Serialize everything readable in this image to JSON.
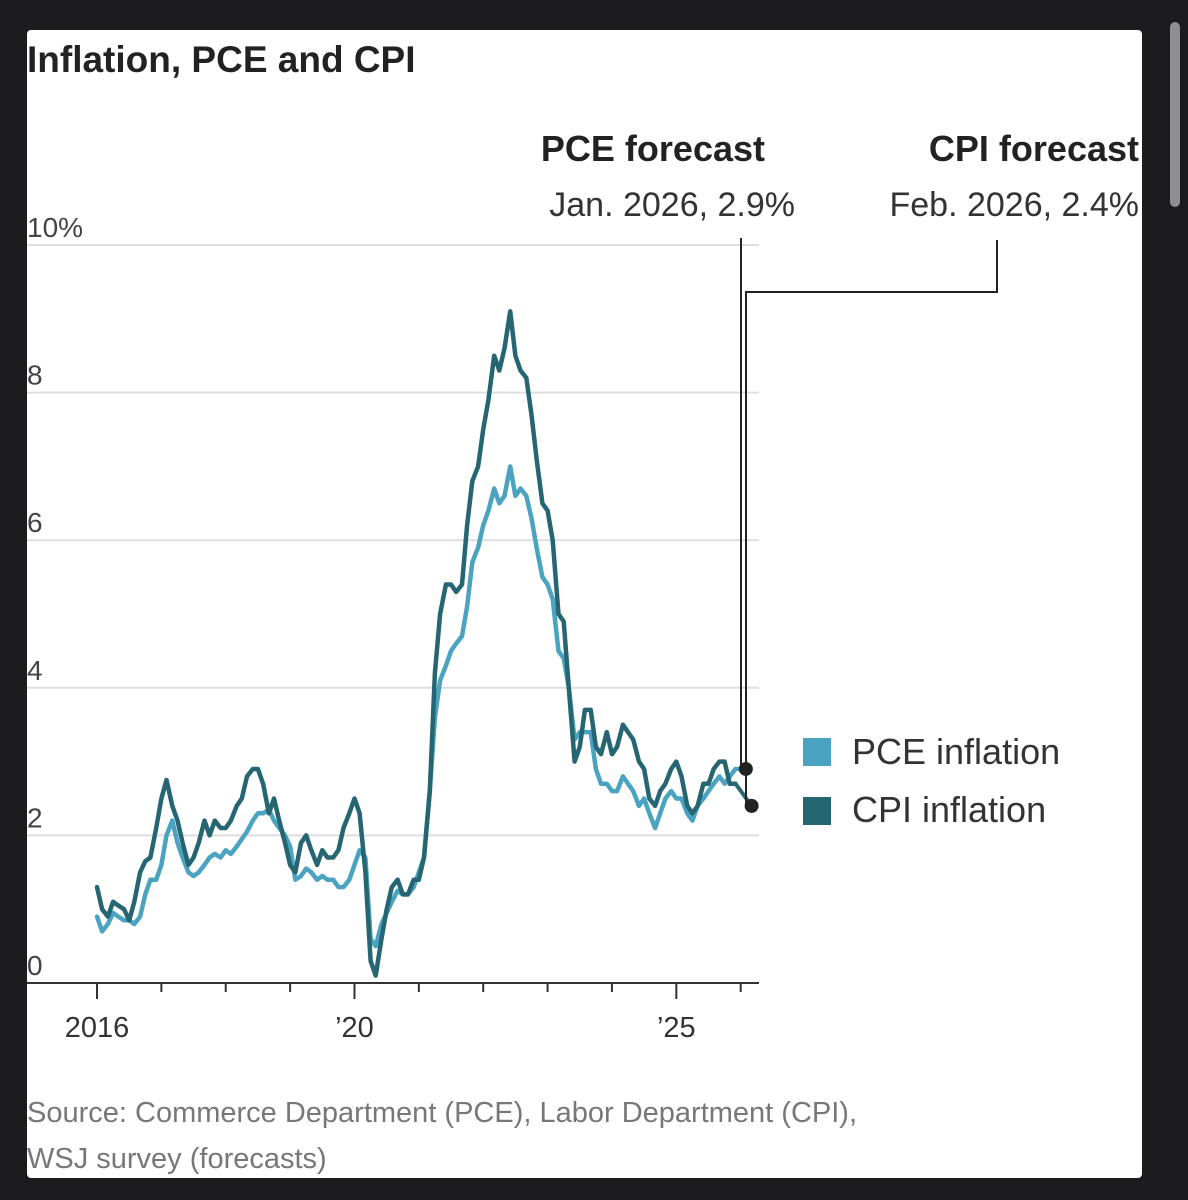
{
  "chart_data": {
    "type": "line",
    "title": "Inflation, PCE and CPI",
    "ylim": [
      0,
      10
    ],
    "yticks": [
      {
        "value": 0,
        "label": "0"
      },
      {
        "value": 2,
        "label": "2"
      },
      {
        "value": 4,
        "label": "4"
      },
      {
        "value": 6,
        "label": "6"
      },
      {
        "value": 8,
        "label": "8"
      },
      {
        "value": 10,
        "label": "10%"
      }
    ],
    "xlim": [
      2016.0,
      2026.3
    ],
    "xticks": [
      {
        "value": 2016,
        "label": "2016"
      },
      {
        "value": 2020,
        "label": "’20"
      },
      {
        "value": 2025,
        "label": "’25"
      }
    ],
    "minor_xticks": [
      2017,
      2018,
      2019,
      2021,
      2022,
      2023,
      2024,
      2026
    ],
    "grid": true,
    "series": [
      {
        "name": "PCE inflation",
        "color": "#4aa3c0",
        "points": [
          [
            2016.0,
            0.9
          ],
          [
            2016.08,
            0.7
          ],
          [
            2016.17,
            0.8
          ],
          [
            2016.25,
            0.95
          ],
          [
            2016.33,
            0.9
          ],
          [
            2016.42,
            0.85
          ],
          [
            2016.5,
            0.85
          ],
          [
            2016.58,
            0.8
          ],
          [
            2016.67,
            0.9
          ],
          [
            2016.75,
            1.2
          ],
          [
            2016.83,
            1.4
          ],
          [
            2016.92,
            1.4
          ],
          [
            2017.0,
            1.6
          ],
          [
            2017.08,
            2.0
          ],
          [
            2017.17,
            2.2
          ],
          [
            2017.25,
            1.9
          ],
          [
            2017.33,
            1.7
          ],
          [
            2017.42,
            1.5
          ],
          [
            2017.5,
            1.45
          ],
          [
            2017.58,
            1.5
          ],
          [
            2017.67,
            1.6
          ],
          [
            2017.75,
            1.7
          ],
          [
            2017.83,
            1.75
          ],
          [
            2017.92,
            1.7
          ],
          [
            2018.0,
            1.8
          ],
          [
            2018.08,
            1.75
          ],
          [
            2018.17,
            1.85
          ],
          [
            2018.25,
            1.95
          ],
          [
            2018.33,
            2.05
          ],
          [
            2018.42,
            2.2
          ],
          [
            2018.5,
            2.3
          ],
          [
            2018.58,
            2.3
          ],
          [
            2018.67,
            2.35
          ],
          [
            2018.75,
            2.2
          ],
          [
            2018.83,
            2.1
          ],
          [
            2018.92,
            2.0
          ],
          [
            2019.0,
            1.85
          ],
          [
            2019.08,
            1.4
          ],
          [
            2019.17,
            1.45
          ],
          [
            2019.25,
            1.55
          ],
          [
            2019.33,
            1.5
          ],
          [
            2019.42,
            1.4
          ],
          [
            2019.5,
            1.45
          ],
          [
            2019.58,
            1.4
          ],
          [
            2019.67,
            1.4
          ],
          [
            2019.75,
            1.3
          ],
          [
            2019.83,
            1.3
          ],
          [
            2019.92,
            1.4
          ],
          [
            2020.0,
            1.6
          ],
          [
            2020.08,
            1.8
          ],
          [
            2020.17,
            1.7
          ],
          [
            2020.25,
            0.6
          ],
          [
            2020.33,
            0.5
          ],
          [
            2020.42,
            0.8
          ],
          [
            2020.5,
            0.95
          ],
          [
            2020.58,
            1.1
          ],
          [
            2020.67,
            1.25
          ],
          [
            2020.75,
            1.2
          ],
          [
            2020.83,
            1.2
          ],
          [
            2020.92,
            1.3
          ],
          [
            2021.0,
            1.5
          ],
          [
            2021.08,
            1.7
          ],
          [
            2021.17,
            2.6
          ],
          [
            2021.25,
            3.6
          ],
          [
            2021.33,
            4.1
          ],
          [
            2021.42,
            4.3
          ],
          [
            2021.5,
            4.5
          ],
          [
            2021.58,
            4.6
          ],
          [
            2021.67,
            4.7
          ],
          [
            2021.75,
            5.1
          ],
          [
            2021.83,
            5.7
          ],
          [
            2021.92,
            5.9
          ],
          [
            2022.0,
            6.2
          ],
          [
            2022.08,
            6.4
          ],
          [
            2022.17,
            6.7
          ],
          [
            2022.25,
            6.5
          ],
          [
            2022.33,
            6.6
          ],
          [
            2022.42,
            7.0
          ],
          [
            2022.5,
            6.6
          ],
          [
            2022.58,
            6.7
          ],
          [
            2022.67,
            6.6
          ],
          [
            2022.75,
            6.3
          ],
          [
            2022.83,
            5.9
          ],
          [
            2022.92,
            5.5
          ],
          [
            2023.0,
            5.4
          ],
          [
            2023.08,
            5.2
          ],
          [
            2023.17,
            4.5
          ],
          [
            2023.25,
            4.4
          ],
          [
            2023.33,
            4.0
          ],
          [
            2023.42,
            3.3
          ],
          [
            2023.5,
            3.4
          ],
          [
            2023.58,
            3.4
          ],
          [
            2023.67,
            3.4
          ],
          [
            2023.75,
            2.9
          ],
          [
            2023.83,
            2.7
          ],
          [
            2023.92,
            2.7
          ],
          [
            2024.0,
            2.6
          ],
          [
            2024.08,
            2.6
          ],
          [
            2024.17,
            2.8
          ],
          [
            2024.25,
            2.7
          ],
          [
            2024.33,
            2.6
          ],
          [
            2024.42,
            2.4
          ],
          [
            2024.5,
            2.5
          ],
          [
            2024.58,
            2.3
          ],
          [
            2024.67,
            2.1
          ],
          [
            2024.75,
            2.3
          ],
          [
            2024.83,
            2.5
          ],
          [
            2024.92,
            2.6
          ],
          [
            2025.0,
            2.5
          ],
          [
            2025.08,
            2.5
          ],
          [
            2025.17,
            2.3
          ],
          [
            2025.25,
            2.2
          ],
          [
            2025.33,
            2.4
          ],
          [
            2025.42,
            2.5
          ],
          [
            2025.5,
            2.6
          ],
          [
            2025.58,
            2.7
          ],
          [
            2025.67,
            2.8
          ],
          [
            2025.75,
            2.7
          ],
          [
            2025.83,
            2.8
          ],
          [
            2025.92,
            2.9
          ]
        ],
        "forecast": {
          "x": 2026.08,
          "value": 2.9,
          "label": "PCE forecast",
          "sub": "Jan. 2026, 2.9%"
        }
      },
      {
        "name": "CPI inflation",
        "color": "#256672",
        "points": [
          [
            2016.0,
            1.3
          ],
          [
            2016.08,
            1.0
          ],
          [
            2016.17,
            0.9
          ],
          [
            2016.25,
            1.1
          ],
          [
            2016.33,
            1.05
          ],
          [
            2016.42,
            1.0
          ],
          [
            2016.5,
            0.85
          ],
          [
            2016.58,
            1.1
          ],
          [
            2016.67,
            1.5
          ],
          [
            2016.75,
            1.65
          ],
          [
            2016.83,
            1.7
          ],
          [
            2016.92,
            2.1
          ],
          [
            2017.0,
            2.5
          ],
          [
            2017.08,
            2.75
          ],
          [
            2017.17,
            2.4
          ],
          [
            2017.25,
            2.2
          ],
          [
            2017.33,
            1.9
          ],
          [
            2017.42,
            1.6
          ],
          [
            2017.5,
            1.7
          ],
          [
            2017.58,
            1.9
          ],
          [
            2017.67,
            2.2
          ],
          [
            2017.75,
            2.0
          ],
          [
            2017.83,
            2.2
          ],
          [
            2017.92,
            2.1
          ],
          [
            2018.0,
            2.1
          ],
          [
            2018.08,
            2.2
          ],
          [
            2018.17,
            2.4
          ],
          [
            2018.25,
            2.5
          ],
          [
            2018.33,
            2.8
          ],
          [
            2018.42,
            2.9
          ],
          [
            2018.5,
            2.9
          ],
          [
            2018.58,
            2.7
          ],
          [
            2018.67,
            2.3
          ],
          [
            2018.75,
            2.5
          ],
          [
            2018.83,
            2.2
          ],
          [
            2018.92,
            1.9
          ],
          [
            2019.0,
            1.6
          ],
          [
            2019.08,
            1.5
          ],
          [
            2019.17,
            1.9
          ],
          [
            2019.25,
            2.0
          ],
          [
            2019.33,
            1.8
          ],
          [
            2019.42,
            1.6
          ],
          [
            2019.5,
            1.8
          ],
          [
            2019.58,
            1.7
          ],
          [
            2019.67,
            1.7
          ],
          [
            2019.75,
            1.8
          ],
          [
            2019.83,
            2.1
          ],
          [
            2019.92,
            2.3
          ],
          [
            2020.0,
            2.5
          ],
          [
            2020.08,
            2.3
          ],
          [
            2020.17,
            1.5
          ],
          [
            2020.25,
            0.3
          ],
          [
            2020.33,
            0.1
          ],
          [
            2020.42,
            0.6
          ],
          [
            2020.5,
            1.0
          ],
          [
            2020.58,
            1.3
          ],
          [
            2020.67,
            1.4
          ],
          [
            2020.75,
            1.2
          ],
          [
            2020.83,
            1.2
          ],
          [
            2020.92,
            1.4
          ],
          [
            2021.0,
            1.4
          ],
          [
            2021.08,
            1.7
          ],
          [
            2021.17,
            2.6
          ],
          [
            2021.25,
            4.2
          ],
          [
            2021.33,
            5.0
          ],
          [
            2021.42,
            5.4
          ],
          [
            2021.5,
            5.4
          ],
          [
            2021.58,
            5.3
          ],
          [
            2021.67,
            5.4
          ],
          [
            2021.75,
            6.2
          ],
          [
            2021.83,
            6.8
          ],
          [
            2021.92,
            7.0
          ],
          [
            2022.0,
            7.5
          ],
          [
            2022.08,
            7.9
          ],
          [
            2022.17,
            8.5
          ],
          [
            2022.25,
            8.3
          ],
          [
            2022.33,
            8.6
          ],
          [
            2022.42,
            9.1
          ],
          [
            2022.5,
            8.5
          ],
          [
            2022.58,
            8.3
          ],
          [
            2022.67,
            8.2
          ],
          [
            2022.75,
            7.7
          ],
          [
            2022.83,
            7.1
          ],
          [
            2022.92,
            6.5
          ],
          [
            2023.0,
            6.4
          ],
          [
            2023.08,
            6.0
          ],
          [
            2023.17,
            5.0
          ],
          [
            2023.25,
            4.9
          ],
          [
            2023.33,
            4.0
          ],
          [
            2023.42,
            3.0
          ],
          [
            2023.5,
            3.2
          ],
          [
            2023.58,
            3.7
          ],
          [
            2023.67,
            3.7
          ],
          [
            2023.75,
            3.2
          ],
          [
            2023.83,
            3.1
          ],
          [
            2023.92,
            3.4
          ],
          [
            2024.0,
            3.1
          ],
          [
            2024.08,
            3.2
          ],
          [
            2024.17,
            3.5
          ],
          [
            2024.25,
            3.4
          ],
          [
            2024.33,
            3.3
          ],
          [
            2024.42,
            3.0
          ],
          [
            2024.5,
            2.9
          ],
          [
            2024.58,
            2.5
          ],
          [
            2024.67,
            2.4
          ],
          [
            2024.75,
            2.6
          ],
          [
            2024.83,
            2.7
          ],
          [
            2024.92,
            2.9
          ],
          [
            2025.0,
            3.0
          ],
          [
            2025.08,
            2.8
          ],
          [
            2025.17,
            2.4
          ],
          [
            2025.25,
            2.3
          ],
          [
            2025.33,
            2.4
          ],
          [
            2025.42,
            2.7
          ],
          [
            2025.5,
            2.7
          ],
          [
            2025.58,
            2.9
          ],
          [
            2025.67,
            3.0
          ],
          [
            2025.75,
            3.0
          ],
          [
            2025.83,
            2.7
          ],
          [
            2025.92,
            2.7
          ]
        ],
        "forecast": {
          "x": 2026.17,
          "value": 2.4,
          "label": "CPI forecast",
          "sub": "Feb. 2026, 2.4%"
        }
      }
    ],
    "legend": {
      "position": "right",
      "items": [
        {
          "label": "PCE inflation",
          "color": "#4aa3c0"
        },
        {
          "label": "CPI inflation",
          "color": "#256672"
        }
      ]
    },
    "source_lines": [
      "Source: Commerce Department (PCE), Labor Department (CPI),",
      "WSJ survey (forecasts)"
    ]
  }
}
